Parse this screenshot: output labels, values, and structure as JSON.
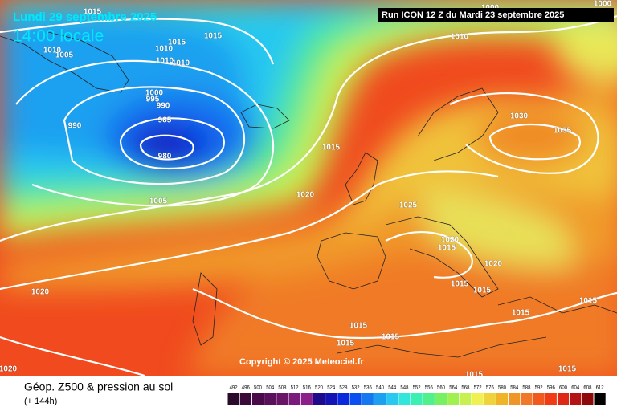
{
  "header": {
    "date": "Lundi 29 septembre 2025",
    "time": "14:00 locale",
    "run": "Run ICON 12 Z du Mardi 23 septembre 2025"
  },
  "copyright": "Copyright © 2025 Meteociel.fr",
  "footer": {
    "title": "Géop. Z500 & pression au sol",
    "lead": "(+ 144h)"
  },
  "isobars": [
    "1015",
    "1015",
    "1010",
    "1005",
    "1015",
    "1010",
    "1010",
    "1010",
    "1000",
    "995",
    "990",
    "990",
    "985",
    "980",
    "1005",
    "1015",
    "1020",
    "1025",
    "1030",
    "1035",
    "1010",
    "1000",
    "1000",
    "1020",
    "1020",
    "1020",
    "1015",
    "1015",
    "1015",
    "1015",
    "1015",
    "1015",
    "1015",
    "1020",
    "1015",
    "1015",
    "1015"
  ],
  "scale": {
    "values": [
      492,
      496,
      500,
      504,
      508,
      512,
      516,
      520,
      524,
      528,
      532,
      536,
      540,
      544,
      548,
      552,
      556,
      560,
      564,
      568,
      572,
      576,
      580,
      584,
      588,
      592,
      596,
      600,
      604,
      608,
      612
    ],
    "colors": [
      "#2a0a2a",
      "#3a0a3a",
      "#4a0a4a",
      "#5a105a",
      "#6a1468",
      "#7a1a7a",
      "#8c1e8c",
      "#1e0a8c",
      "#1414b4",
      "#0a28dc",
      "#0a50f0",
      "#1478f0",
      "#1ea0f0",
      "#28c8f0",
      "#32e6dc",
      "#3cf0b4",
      "#50f08c",
      "#78f064",
      "#a0f050",
      "#c8f050",
      "#f0f050",
      "#f0d23c",
      "#f0b428",
      "#f09628",
      "#f07828",
      "#f05a1e",
      "#f03c14",
      "#dc2814",
      "#b41414",
      "#8c0a0a",
      "#000000"
    ]
  }
}
